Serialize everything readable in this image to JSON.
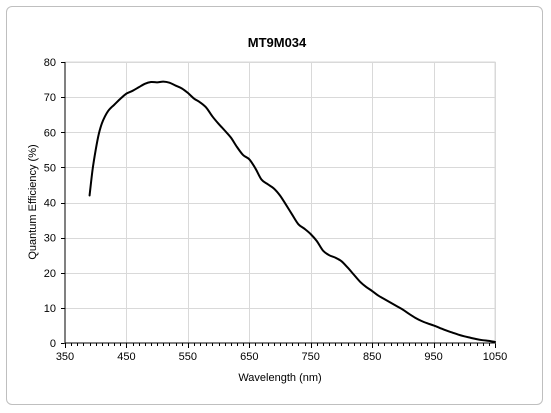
{
  "chart_data": {
    "type": "line",
    "title": "MT9M034",
    "xlabel": "Wavelength (nm)",
    "ylabel": "Quantum Efficiency (%)",
    "xlim": [
      350,
      1050
    ],
    "ylim": [
      0,
      80
    ],
    "xticks": [
      350,
      450,
      550,
      650,
      750,
      850,
      950,
      1050
    ],
    "yticks": [
      0,
      10,
      20,
      30,
      40,
      50,
      60,
      70,
      80
    ],
    "grid": true,
    "legend": "none",
    "colors": {
      "line": "#000000",
      "grid": "#d9d9d9",
      "axis": "#000000"
    },
    "series": [
      {
        "x": [
          390,
          395,
          400,
          405,
          410,
          415,
          420,
          425,
          430,
          440,
          450,
          460,
          470,
          480,
          490,
          500,
          510,
          520,
          530,
          540,
          550,
          560,
          570,
          580,
          590,
          600,
          610,
          620,
          630,
          640,
          650,
          660,
          670,
          680,
          690,
          700,
          710,
          720,
          730,
          740,
          750,
          760,
          770,
          780,
          790,
          800,
          810,
          820,
          830,
          840,
          850,
          860,
          870,
          880,
          890,
          900,
          910,
          920,
          930,
          940,
          950,
          960,
          970,
          980,
          990,
          1000,
          1010,
          1020,
          1030,
          1040,
          1050
        ],
        "y": [
          42,
          49.5,
          55,
          59.5,
          62.5,
          64.5,
          66,
          67,
          67.8,
          69.5,
          71,
          71.8,
          72.8,
          73.8,
          74.3,
          74.2,
          74.4,
          74.1,
          73.3,
          72.5,
          71.2,
          69.6,
          68.5,
          67,
          64.5,
          62.4,
          60.5,
          58.5,
          55.8,
          53.5,
          52.3,
          49.7,
          46.5,
          45.2,
          44,
          42,
          39.3,
          36.5,
          33.8,
          32.5,
          31,
          29,
          26.3,
          25,
          24.3,
          23.3,
          21.5,
          19.5,
          17.5,
          16,
          14.8,
          13.5,
          12.5,
          11.5,
          10.5,
          9.5,
          8.3,
          7.2,
          6.3,
          5.6,
          5,
          4.3,
          3.6,
          3,
          2.4,
          1.9,
          1.5,
          1.1,
          0.8,
          0.6,
          0.3
        ]
      }
    ]
  }
}
